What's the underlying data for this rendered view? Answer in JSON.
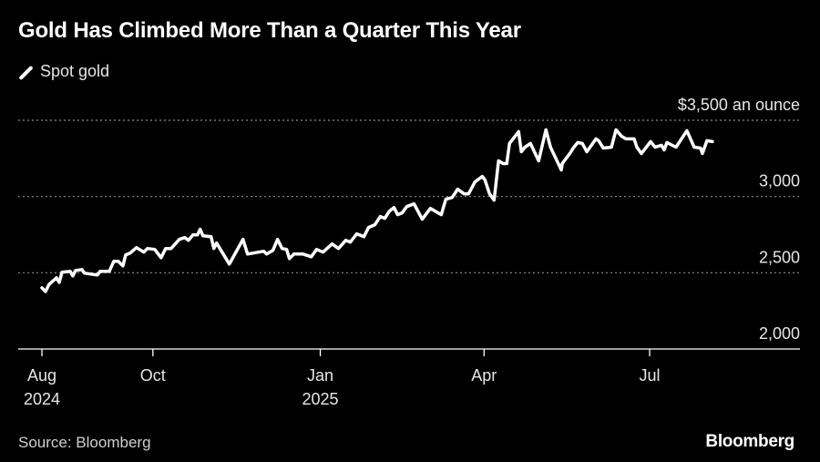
{
  "chart_data": {
    "type": "line",
    "title": "Gold Has Climbed More Than a Quarter This Year",
    "legend": [
      "Spot gold"
    ],
    "legend_placement": "top-left",
    "source": "Source: Bloomberg",
    "brand": "Bloomberg",
    "x_start": "2024-08-01",
    "x_unit": "days since 2024-08-01",
    "x_ticks": [
      {
        "day": 0,
        "label": "Aug",
        "sub": "2024"
      },
      {
        "day": 61,
        "label": "Oct",
        "sub": ""
      },
      {
        "day": 153,
        "label": "Jan",
        "sub": "2025"
      },
      {
        "day": 243,
        "label": "Apr",
        "sub": ""
      },
      {
        "day": 334,
        "label": "Jul",
        "sub": ""
      }
    ],
    "ylim": [
      2000,
      3500
    ],
    "y_ticks": [
      {
        "value": 2000,
        "label": "2,000"
      },
      {
        "value": 2500,
        "label": "2,500"
      },
      {
        "value": 3000,
        "label": "3,000"
      },
      {
        "value": 3500,
        "label": "$3,500 an ounce"
      }
    ],
    "grid": true,
    "series": [
      {
        "name": "Spot gold",
        "color": "#ffffff",
        "points": [
          [
            0,
            2401
          ],
          [
            2,
            2377
          ],
          [
            4,
            2425
          ],
          [
            8,
            2467
          ],
          [
            9.5,
            2437
          ],
          [
            11,
            2503
          ],
          [
            15.5,
            2509
          ],
          [
            17,
            2479
          ],
          [
            18.5,
            2515
          ],
          [
            22,
            2521
          ],
          [
            23.5,
            2497
          ],
          [
            30.5,
            2485
          ],
          [
            32,
            2509
          ],
          [
            37,
            2509
          ],
          [
            39.5,
            2575
          ],
          [
            42,
            2575
          ],
          [
            44.5,
            2545
          ],
          [
            46,
            2617
          ],
          [
            48.5,
            2629
          ],
          [
            52,
            2665
          ],
          [
            56,
            2635
          ],
          [
            58,
            2659
          ],
          [
            62,
            2653
          ],
          [
            65.5,
            2599
          ],
          [
            68,
            2659
          ],
          [
            71,
            2659
          ],
          [
            75.5,
            2719
          ],
          [
            78.5,
            2731
          ],
          [
            80.5,
            2713
          ],
          [
            83,
            2749
          ],
          [
            85.5,
            2749
          ],
          [
            87,
            2785
          ],
          [
            88.5,
            2743
          ],
          [
            93,
            2737
          ],
          [
            94.5,
            2659
          ],
          [
            96,
            2695
          ],
          [
            103,
            2557
          ],
          [
            110.5,
            2719
          ],
          [
            113,
            2623
          ],
          [
            122,
            2641
          ],
          [
            123.5,
            2623
          ],
          [
            127,
            2647
          ],
          [
            129.5,
            2719
          ],
          [
            132,
            2659
          ],
          [
            134.5,
            2653
          ],
          [
            136,
            2593
          ],
          [
            138.5,
            2623
          ],
          [
            143.5,
            2623
          ],
          [
            148,
            2605
          ],
          [
            151,
            2653
          ],
          [
            154.5,
            2635
          ],
          [
            159.5,
            2689
          ],
          [
            163,
            2659
          ],
          [
            167,
            2713
          ],
          [
            169.5,
            2701
          ],
          [
            173,
            2755
          ],
          [
            177,
            2737
          ],
          [
            179.5,
            2797
          ],
          [
            183,
            2815
          ],
          [
            186,
            2869
          ],
          [
            188.5,
            2857
          ],
          [
            191,
            2904
          ],
          [
            193.5,
            2928
          ],
          [
            195.5,
            2881
          ],
          [
            198,
            2893
          ],
          [
            200.5,
            2934
          ],
          [
            204.5,
            2952
          ],
          [
            209,
            2851
          ],
          [
            213.5,
            2922
          ],
          [
            219.5,
            2881
          ],
          [
            222,
            2982
          ],
          [
            225.5,
            2994
          ],
          [
            228.5,
            3048
          ],
          [
            232,
            3018
          ],
          [
            234.5,
            3018
          ],
          [
            238,
            3096
          ],
          [
            242,
            3132
          ],
          [
            243.5,
            3108
          ],
          [
            246,
            3018
          ],
          [
            248.5,
            2976
          ],
          [
            251,
            3234
          ],
          [
            253.5,
            3216
          ],
          [
            255.5,
            3216
          ],
          [
            257,
            3348
          ],
          [
            262,
            3426
          ],
          [
            263.5,
            3294
          ],
          [
            265.5,
            3324
          ],
          [
            268.5,
            3348
          ],
          [
            273,
            3234
          ],
          [
            277,
            3438
          ],
          [
            279.5,
            3324
          ],
          [
            285.5,
            3174
          ],
          [
            286,
            3216
          ],
          [
            290.5,
            3288
          ],
          [
            292,
            3318
          ],
          [
            294.5,
            3354
          ],
          [
            297,
            3348
          ],
          [
            299.5,
            3294
          ],
          [
            304.5,
            3378
          ],
          [
            306,
            3366
          ],
          [
            308.5,
            3318
          ],
          [
            313,
            3324
          ],
          [
            315.5,
            3438
          ],
          [
            318.5,
            3396
          ],
          [
            321,
            3378
          ],
          [
            325.5,
            3378
          ],
          [
            327,
            3324
          ],
          [
            329.5,
            3282
          ],
          [
            334.5,
            3360
          ],
          [
            337,
            3324
          ],
          [
            340.5,
            3336
          ],
          [
            342,
            3306
          ],
          [
            343.5,
            3354
          ],
          [
            348.5,
            3324
          ],
          [
            354.5,
            3432
          ],
          [
            358.5,
            3324
          ],
          [
            362,
            3318
          ],
          [
            363,
            3282
          ],
          [
            365.5,
            3366
          ],
          [
            368.5,
            3360
          ]
        ]
      }
    ],
    "grid_color": "#8c8c8c",
    "axis_color": "#ffffff"
  }
}
